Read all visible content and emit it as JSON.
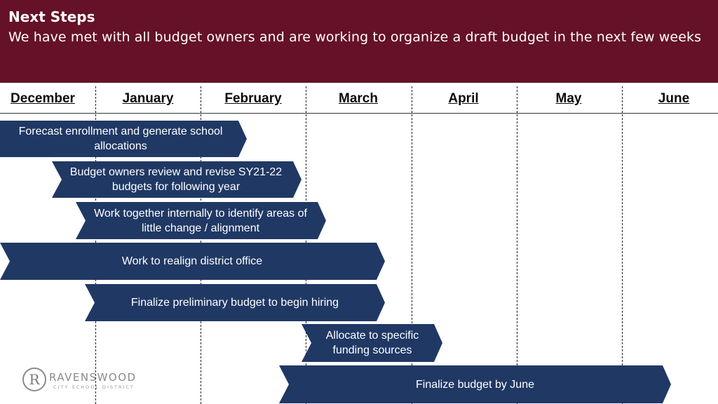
{
  "header": {
    "title": "Next Steps",
    "subtitle": "We have met with all budget owners and are working to organize a draft budget in the next few weeks"
  },
  "months": [
    "December",
    "January",
    "February",
    "March",
    "April",
    "May",
    "June"
  ],
  "tasks": [
    {
      "label": "Forecast enrollment and generate school allocations"
    },
    {
      "label": "Budget owners review and revise SY21-22 budgets for following year"
    },
    {
      "label": "Work together internally to identify areas of little change / alignment"
    },
    {
      "label": "Work to realign district office"
    },
    {
      "label": "Finalize preliminary budget to begin hiring"
    },
    {
      "label": "Allocate to specific funding sources"
    },
    {
      "label": "Finalize budget by June"
    }
  ],
  "logo": {
    "name": "RAVENSWOOD",
    "sub": "CITY SCHOOL DISTRICT",
    "monogram": "R"
  },
  "colors": {
    "header_bg": "#651127",
    "bar_fill": "#203864",
    "text_on_bar": "#ffffff"
  }
}
